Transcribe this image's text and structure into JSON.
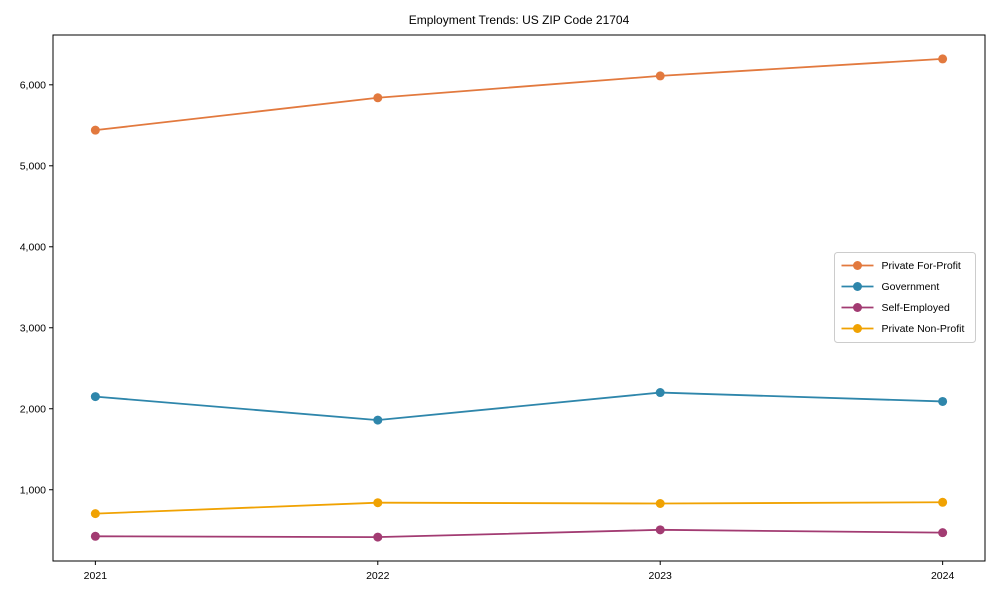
{
  "window": {
    "title": "Employment Trends: US ZIP Code 21704"
  },
  "chart_data": {
    "type": "line",
    "title": "Employment Trends: US ZIP Code 21704",
    "xlabel": "",
    "ylabel": "",
    "x": [
      2021,
      2022,
      2023,
      2024
    ],
    "x_tick_labels": [
      "2021",
      "2022",
      "2023",
      "2024"
    ],
    "y_ticks": [
      1000,
      2000,
      3000,
      4000,
      5000,
      6000
    ],
    "y_tick_labels": [
      "1,000",
      "2,000",
      "3,000",
      "4,000",
      "5,000",
      "6,000"
    ],
    "xlim": [
      2020.85,
      2024.15
    ],
    "ylim": [
      120,
      6615
    ],
    "grid": false,
    "legend_position": "center right",
    "series": [
      {
        "name": "Private For-Profit",
        "color": "#E2793E",
        "values": [
          5440,
          5840,
          6110,
          6320
        ]
      },
      {
        "name": "Government",
        "color": "#2E86AB",
        "values": [
          2150,
          1860,
          2200,
          2090
        ]
      },
      {
        "name": "Self-Employed",
        "color": "#A23B72",
        "values": [
          425,
          415,
          505,
          470
        ]
      },
      {
        "name": "Private Non-Profit",
        "color": "#F0A202",
        "values": [
          705,
          840,
          830,
          845
        ]
      }
    ],
    "style": {
      "frame_color": "#000000",
      "legend_border_color": "#cccccc",
      "legend_bg_color": "#ffffff",
      "marker_radius": 4.5,
      "line_width": 1.8
    }
  }
}
